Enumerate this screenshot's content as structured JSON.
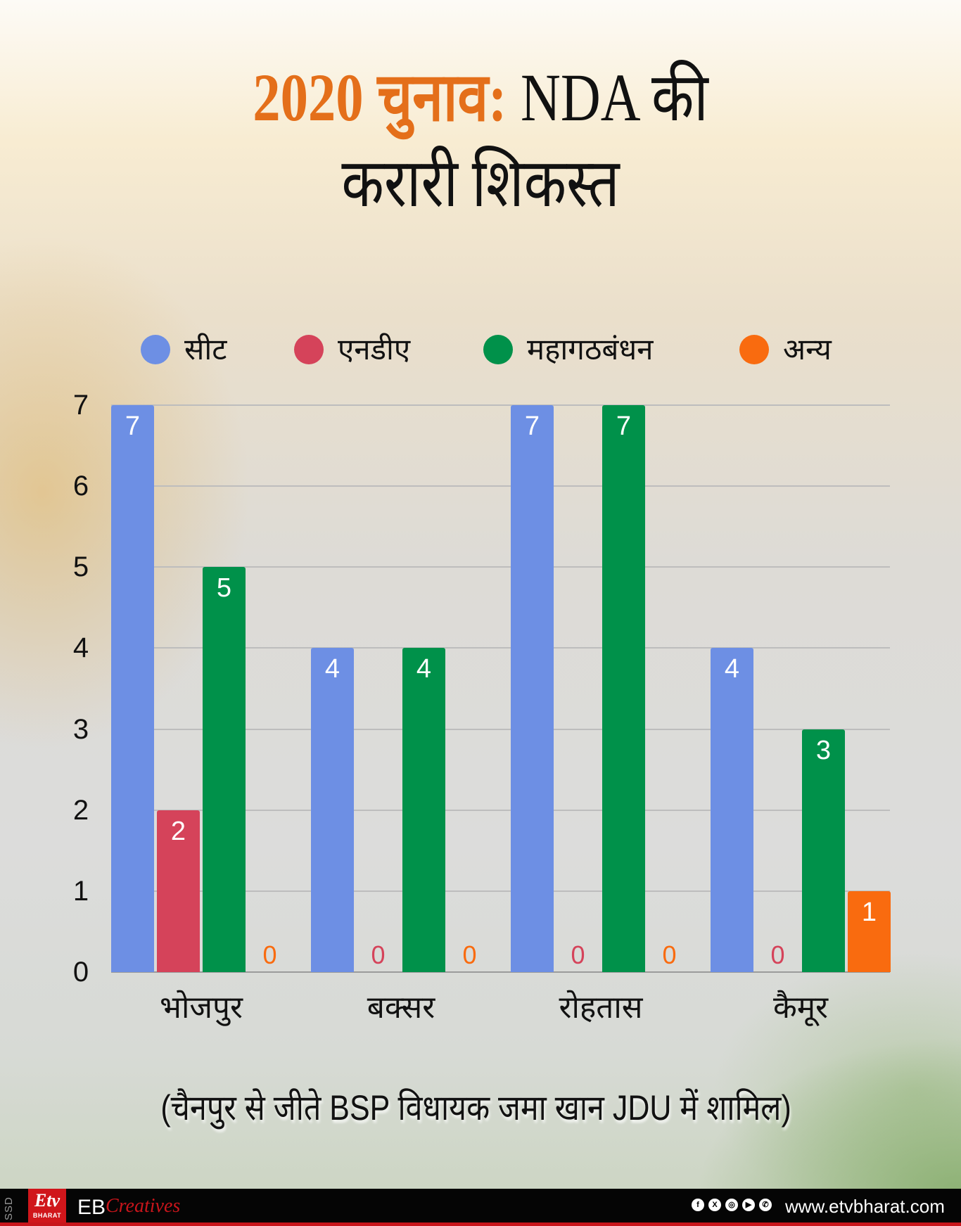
{
  "title": {
    "line1_accent": "2020 चुनाव:",
    "line1_rest": " NDA की",
    "line2": "करारी शिकस्त",
    "accent_color": "#e46f1a"
  },
  "legend": [
    {
      "label": "सीट",
      "color": "#6d8fe4",
      "icon": "circle-dot"
    },
    {
      "label": "एनडीए",
      "color": "#d5435a",
      "icon": "circle-dot"
    },
    {
      "label": "महागठबंधन",
      "color": "#00914a",
      "icon": "circle-dot"
    },
    {
      "label": "अन्य",
      "color": "#f96b0f",
      "icon": "circle-dot"
    }
  ],
  "chart_data": {
    "type": "bar",
    "title": "2020 चुनाव: NDA की करारी शिकस्त",
    "categories": [
      "भोजपुर",
      "बक्सर",
      "रोहतास",
      "कैमूर"
    ],
    "series": [
      {
        "name": "सीट",
        "color": "#6d8fe4",
        "values": [
          7,
          4,
          7,
          4
        ]
      },
      {
        "name": "एनडीए",
        "color": "#d5435a",
        "values": [
          2,
          0,
          0,
          0
        ]
      },
      {
        "name": "महागठबंधन",
        "color": "#00914a",
        "values": [
          5,
          4,
          7,
          3
        ]
      },
      {
        "name": "अन्य",
        "color": "#f96b0f",
        "values": [
          0,
          0,
          0,
          1
        ]
      }
    ],
    "yticks": [
      "0",
      "1",
      "2",
      "3",
      "4",
      "5",
      "6",
      "7"
    ],
    "ylim": [
      0,
      7
    ],
    "xlabel": "",
    "ylabel": "",
    "grid": true,
    "legend_position": "top",
    "data_labels": true
  },
  "note": "(चैनपुर से जीते BSP विधायक जमा खान JDU में शामिल)",
  "footer": {
    "side_tag": "SSD",
    "logo_text": "Etv",
    "logo_sub": "BHARAT",
    "brand_eb": "EB",
    "brand_creatives": "Creatives",
    "social": [
      {
        "name": "facebook",
        "glyph": "f"
      },
      {
        "name": "x",
        "glyph": "X"
      },
      {
        "name": "instagram",
        "glyph": "◎"
      },
      {
        "name": "youtube",
        "glyph": "▶"
      },
      {
        "name": "whatsapp",
        "glyph": "✆"
      }
    ],
    "website": "www.etvbharat.com"
  }
}
